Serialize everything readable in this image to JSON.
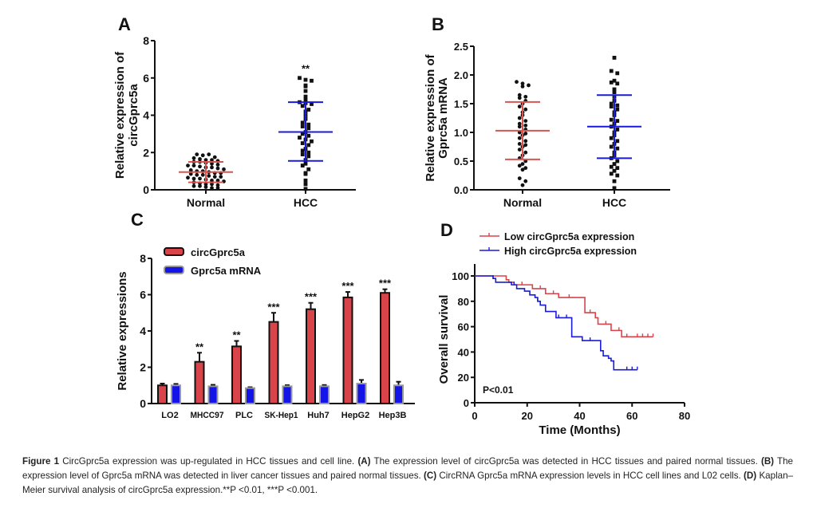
{
  "chart_data": [
    {
      "panel": "A",
      "type": "scatter",
      "ylabel": [
        "Relative expression of",
        "circGprc5a"
      ],
      "categories": [
        "Normal",
        "HCC"
      ],
      "ylim": [
        0,
        8
      ],
      "yticks": [
        0,
        2,
        4,
        6,
        8
      ],
      "series": [
        {
          "name": "Normal",
          "color": "#d9534f",
          "mean": 0.95,
          "sd_low": 0.4,
          "sd_high": 1.5,
          "values": [
            1.9,
            1.85,
            1.9,
            1.75,
            1.7,
            1.65,
            1.6,
            1.6,
            1.55,
            1.5,
            1.5,
            1.45,
            1.4,
            1.35,
            1.3,
            1.3,
            1.25,
            1.2,
            1.2,
            1.15,
            1.1,
            1.05,
            1.0,
            1.0,
            0.95,
            0.9,
            0.9,
            0.85,
            0.8,
            0.8,
            0.75,
            0.7,
            0.7,
            0.65,
            0.6,
            0.6,
            0.55,
            0.5,
            0.5,
            0.45,
            0.4,
            0.35,
            0.3,
            0.3,
            0.25,
            0.2,
            0.2,
            0.15,
            0.1,
            0.1
          ]
        },
        {
          "name": "HCC",
          "color": "#1a1adb",
          "mean": 3.1,
          "sd_low": 1.55,
          "sd_high": 4.7,
          "values": [
            6.0,
            5.9,
            5.85,
            5.6,
            5.55,
            5.3,
            5.0,
            4.8,
            4.7,
            4.65,
            4.6,
            4.5,
            4.3,
            4.2,
            4.0,
            3.8,
            3.6,
            3.5,
            3.4,
            3.3,
            3.1,
            3.0,
            2.9,
            2.8,
            2.7,
            2.6,
            2.5,
            2.4,
            2.2,
            2.1,
            2.0,
            1.9,
            1.8,
            1.6,
            1.4,
            1.3,
            1.1,
            0.9,
            0.85,
            0.5,
            0.3,
            0.05
          ]
        }
      ],
      "annotations": [
        "**"
      ]
    },
    {
      "panel": "B",
      "type": "scatter",
      "ylabel": [
        "Relative expression of",
        "Gprc5a mRNA"
      ],
      "categories": [
        "Normal",
        "HCC"
      ],
      "ylim": [
        0,
        2.5
      ],
      "yticks": [
        "0.0",
        "0.5",
        "1.0",
        "1.5",
        "2.0",
        "2.5"
      ],
      "series": [
        {
          "name": "Normal",
          "color": "#d9534f",
          "mean": 1.03,
          "sd_low": 0.53,
          "sd_high": 1.53,
          "values": [
            1.88,
            1.85,
            1.82,
            1.8,
            1.65,
            1.62,
            1.6,
            1.55,
            1.5,
            1.45,
            1.4,
            1.35,
            1.3,
            1.25,
            1.2,
            1.15,
            1.12,
            1.1,
            1.05,
            1.0,
            0.98,
            0.95,
            0.9,
            0.85,
            0.8,
            0.78,
            0.75,
            0.7,
            0.65,
            0.6,
            0.55,
            0.5,
            0.45,
            0.42,
            0.38,
            0.35,
            0.2,
            0.15,
            0.08
          ]
        },
        {
          "name": "HCC",
          "color": "#1a1adb",
          "mean": 1.1,
          "sd_low": 0.55,
          "sd_high": 1.65,
          "values": [
            2.3,
            2.07,
            2.03,
            1.9,
            1.87,
            1.85,
            1.75,
            1.7,
            1.62,
            1.55,
            1.5,
            1.47,
            1.45,
            1.4,
            1.35,
            1.3,
            1.22,
            1.2,
            1.15,
            1.1,
            1.05,
            1.0,
            0.95,
            0.9,
            0.85,
            0.8,
            0.75,
            0.72,
            0.65,
            0.6,
            0.55,
            0.5,
            0.45,
            0.4,
            0.38,
            0.33,
            0.28,
            0.25,
            0.15,
            0.03
          ]
        }
      ]
    },
    {
      "panel": "C",
      "type": "bar",
      "ylabel": "Relative expressions",
      "categories": [
        "LO2",
        "MHCC97",
        "PLC",
        "SK-Hep1",
        "Huh7",
        "HepG2",
        "Hep3B"
      ],
      "ylim": [
        0,
        8
      ],
      "yticks": [
        0,
        2,
        4,
        6,
        8
      ],
      "series": [
        {
          "name": "circGprc5a",
          "color": "#d9434a",
          "values": [
            1.0,
            2.3,
            3.15,
            4.5,
            5.2,
            5.85,
            6.1
          ],
          "errors": [
            0.1,
            0.5,
            0.3,
            0.5,
            0.35,
            0.3,
            0.2
          ]
        },
        {
          "name": "Gprc5a mRNA",
          "color": "#1414e6",
          "values": [
            1.0,
            0.95,
            0.85,
            0.95,
            0.95,
            1.1,
            1.0
          ],
          "errors": [
            0.08,
            0.08,
            0.05,
            0.06,
            0.07,
            0.2,
            0.2
          ]
        }
      ],
      "annotations": [
        "",
        "**",
        "**",
        "***",
        "***",
        "***",
        "***"
      ]
    },
    {
      "panel": "D",
      "type": "line",
      "xlabel": "Time (Months)",
      "ylabel": "Overall survival",
      "xlim": [
        0,
        80
      ],
      "ylim": [
        0,
        100
      ],
      "xticks": [
        0,
        20,
        40,
        60,
        80
      ],
      "yticks": [
        0,
        20,
        40,
        60,
        80,
        100
      ],
      "legend_position": "top-left",
      "pvalue": "P<0.01",
      "series": [
        {
          "name": "Low circGprc5a expression",
          "color": "#d9434a",
          "steps": [
            [
              0,
              100
            ],
            [
              12,
              97
            ],
            [
              13,
              95
            ],
            [
              15,
              93
            ],
            [
              22,
              90
            ],
            [
              27,
              86
            ],
            [
              32,
              83
            ],
            [
              42,
              71
            ],
            [
              46,
              67
            ],
            [
              47,
              62
            ],
            [
              52,
              57
            ],
            [
              56,
              52
            ],
            [
              68,
              52
            ]
          ],
          "censored": [
            18,
            25,
            30,
            36,
            44,
            50,
            55,
            58,
            62,
            64,
            66,
            68
          ]
        },
        {
          "name": "High circGprc5a expression",
          "color": "#1a1adb",
          "steps": [
            [
              0,
              100
            ],
            [
              7,
              98
            ],
            [
              8,
              95
            ],
            [
              14,
              93
            ],
            [
              16,
              90
            ],
            [
              19,
              88
            ],
            [
              21,
              85
            ],
            [
              23,
              83
            ],
            [
              24,
              80
            ],
            [
              25,
              77
            ],
            [
              27,
              72
            ],
            [
              31,
              67
            ],
            [
              37,
              52
            ],
            [
              41,
              49
            ],
            [
              48,
              41
            ],
            [
              49,
              37
            ],
            [
              51,
              35
            ],
            [
              52,
              33
            ],
            [
              53,
              26
            ],
            [
              62,
              26
            ]
          ],
          "censored": [
            7,
            15,
            24,
            32,
            35,
            44,
            58,
            60,
            62
          ]
        }
      ]
    }
  ],
  "caption": {
    "figure_label": "Figure 1",
    "title": " CircGprc5a expression was up-regulated in HCC tissues and cell line. ",
    "parts": [
      {
        "label": "(A)",
        "text": " The expression level of circGprc5a was detected in HCC tissues and paired normal tissues. "
      },
      {
        "label": "(B)",
        "text": " The expression level of Gprc5a mRNA was detected in liver cancer tissues and paired normal tissues. "
      },
      {
        "label": "(C)",
        "text": " CircRNA Gprc5a mRNA expression levels in HCC cell lines and L02 cells. "
      },
      {
        "label": "(D)",
        "text": " Kaplan–Meier survival analysis of circGprc5a expression.**P <0.01, ***P <0.001."
      }
    ]
  }
}
